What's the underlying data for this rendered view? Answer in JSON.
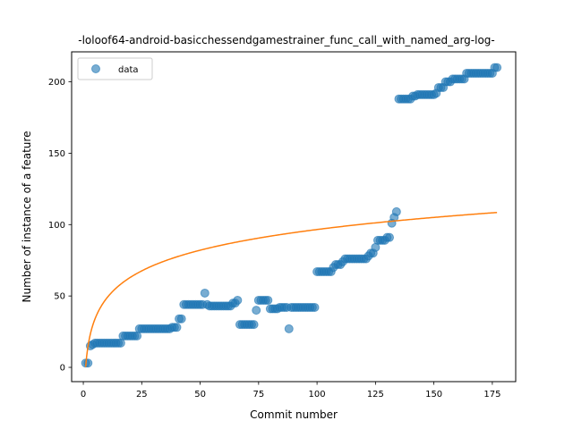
{
  "chart_data": {
    "type": "scatter",
    "title": "-loloof64-android-basicchessendgamestrainer_func_call_with_named_arg-log-",
    "xlabel": "Commit number",
    "ylabel": "Number of instance of a feature",
    "xlim": [
      -5,
      185
    ],
    "ylim": [
      -10,
      221
    ],
    "xticks": [
      0,
      25,
      50,
      75,
      100,
      125,
      150,
      175
    ],
    "yticks": [
      0,
      50,
      100,
      150,
      200
    ],
    "grid": false,
    "legend": {
      "position": "top-left",
      "entries": [
        "data"
      ]
    },
    "colors": {
      "data": "#1f77b4",
      "fit": "#ff7f0e"
    },
    "series": [
      {
        "name": "data",
        "kind": "scatter",
        "points": [
          [
            1,
            3
          ],
          [
            2,
            3
          ],
          [
            3,
            15
          ],
          [
            4,
            16
          ],
          [
            5,
            17
          ],
          [
            6,
            17
          ],
          [
            7,
            17
          ],
          [
            8,
            17
          ],
          [
            9,
            17
          ],
          [
            10,
            17
          ],
          [
            11,
            17
          ],
          [
            12,
            17
          ],
          [
            13,
            17
          ],
          [
            14,
            17
          ],
          [
            15,
            17
          ],
          [
            16,
            17
          ],
          [
            17,
            22
          ],
          [
            18,
            22
          ],
          [
            19,
            22
          ],
          [
            20,
            22
          ],
          [
            21,
            22
          ],
          [
            22,
            22
          ],
          [
            23,
            22
          ],
          [
            24,
            27
          ],
          [
            25,
            27
          ],
          [
            26,
            27
          ],
          [
            27,
            27
          ],
          [
            28,
            27
          ],
          [
            29,
            27
          ],
          [
            30,
            27
          ],
          [
            31,
            27
          ],
          [
            32,
            27
          ],
          [
            33,
            27
          ],
          [
            34,
            27
          ],
          [
            35,
            27
          ],
          [
            36,
            27
          ],
          [
            37,
            27
          ],
          [
            38,
            28
          ],
          [
            39,
            28
          ],
          [
            40,
            28
          ],
          [
            41,
            34
          ],
          [
            42,
            34
          ],
          [
            43,
            44
          ],
          [
            44,
            44
          ],
          [
            45,
            44
          ],
          [
            46,
            44
          ],
          [
            47,
            44
          ],
          [
            48,
            44
          ],
          [
            49,
            44
          ],
          [
            50,
            44
          ],
          [
            51,
            44
          ],
          [
            52,
            52
          ],
          [
            53,
            44
          ],
          [
            54,
            43
          ],
          [
            55,
            43
          ],
          [
            56,
            43
          ],
          [
            57,
            43
          ],
          [
            58,
            43
          ],
          [
            59,
            43
          ],
          [
            60,
            43
          ],
          [
            61,
            43
          ],
          [
            62,
            43
          ],
          [
            63,
            43
          ],
          [
            64,
            45
          ],
          [
            65,
            45
          ],
          [
            66,
            47
          ],
          [
            67,
            30
          ],
          [
            68,
            30
          ],
          [
            69,
            30
          ],
          [
            70,
            30
          ],
          [
            71,
            30
          ],
          [
            72,
            30
          ],
          [
            73,
            30
          ],
          [
            74,
            40
          ],
          [
            75,
            47
          ],
          [
            76,
            47
          ],
          [
            77,
            47
          ],
          [
            78,
            47
          ],
          [
            79,
            47
          ],
          [
            80,
            41
          ],
          [
            81,
            41
          ],
          [
            82,
            41
          ],
          [
            83,
            41
          ],
          [
            84,
            42
          ],
          [
            85,
            42
          ],
          [
            86,
            42
          ],
          [
            87,
            42
          ],
          [
            88,
            27
          ],
          [
            89,
            42
          ],
          [
            90,
            42
          ],
          [
            91,
            42
          ],
          [
            92,
            42
          ],
          [
            93,
            42
          ],
          [
            94,
            42
          ],
          [
            95,
            42
          ],
          [
            96,
            42
          ],
          [
            97,
            42
          ],
          [
            98,
            42
          ],
          [
            99,
            42
          ],
          [
            100,
            67
          ],
          [
            101,
            67
          ],
          [
            102,
            67
          ],
          [
            103,
            67
          ],
          [
            104,
            67
          ],
          [
            105,
            67
          ],
          [
            106,
            67
          ],
          [
            107,
            70
          ],
          [
            108,
            72
          ],
          [
            109,
            72
          ],
          [
            110,
            72
          ],
          [
            111,
            74
          ],
          [
            112,
            76
          ],
          [
            113,
            76
          ],
          [
            114,
            76
          ],
          [
            115,
            76
          ],
          [
            116,
            76
          ],
          [
            117,
            76
          ],
          [
            118,
            76
          ],
          [
            119,
            76
          ],
          [
            120,
            76
          ],
          [
            121,
            76
          ],
          [
            122,
            78
          ],
          [
            123,
            80
          ],
          [
            124,
            80
          ],
          [
            125,
            84
          ],
          [
            126,
            89
          ],
          [
            127,
            89
          ],
          [
            128,
            89
          ],
          [
            129,
            89
          ],
          [
            130,
            91
          ],
          [
            131,
            91
          ],
          [
            132,
            101
          ],
          [
            133,
            105
          ],
          [
            134,
            109
          ],
          [
            135,
            188
          ],
          [
            136,
            188
          ],
          [
            137,
            188
          ],
          [
            138,
            188
          ],
          [
            139,
            188
          ],
          [
            140,
            188
          ],
          [
            141,
            190
          ],
          [
            142,
            190
          ],
          [
            143,
            191
          ],
          [
            144,
            191
          ],
          [
            145,
            191
          ],
          [
            146,
            191
          ],
          [
            147,
            191
          ],
          [
            148,
            191
          ],
          [
            149,
            191
          ],
          [
            150,
            191
          ],
          [
            151,
            192
          ],
          [
            152,
            196
          ],
          [
            153,
            196
          ],
          [
            154,
            196
          ],
          [
            155,
            200
          ],
          [
            156,
            200
          ],
          [
            157,
            200
          ],
          [
            158,
            202
          ],
          [
            159,
            202
          ],
          [
            160,
            202
          ],
          [
            161,
            202
          ],
          [
            162,
            202
          ],
          [
            163,
            202
          ],
          [
            164,
            206
          ],
          [
            165,
            206
          ],
          [
            166,
            206
          ],
          [
            167,
            206
          ],
          [
            168,
            206
          ],
          [
            169,
            206
          ],
          [
            170,
            206
          ],
          [
            171,
            206
          ],
          [
            172,
            206
          ],
          [
            173,
            206
          ],
          [
            174,
            206
          ],
          [
            175,
            206
          ],
          [
            176,
            210
          ],
          [
            177,
            210
          ]
        ]
      },
      {
        "name": "",
        "kind": "line",
        "equation": "y = 0.3 + 20.9 * ln(x)",
        "x_range": [
          1,
          177
        ]
      }
    ]
  }
}
